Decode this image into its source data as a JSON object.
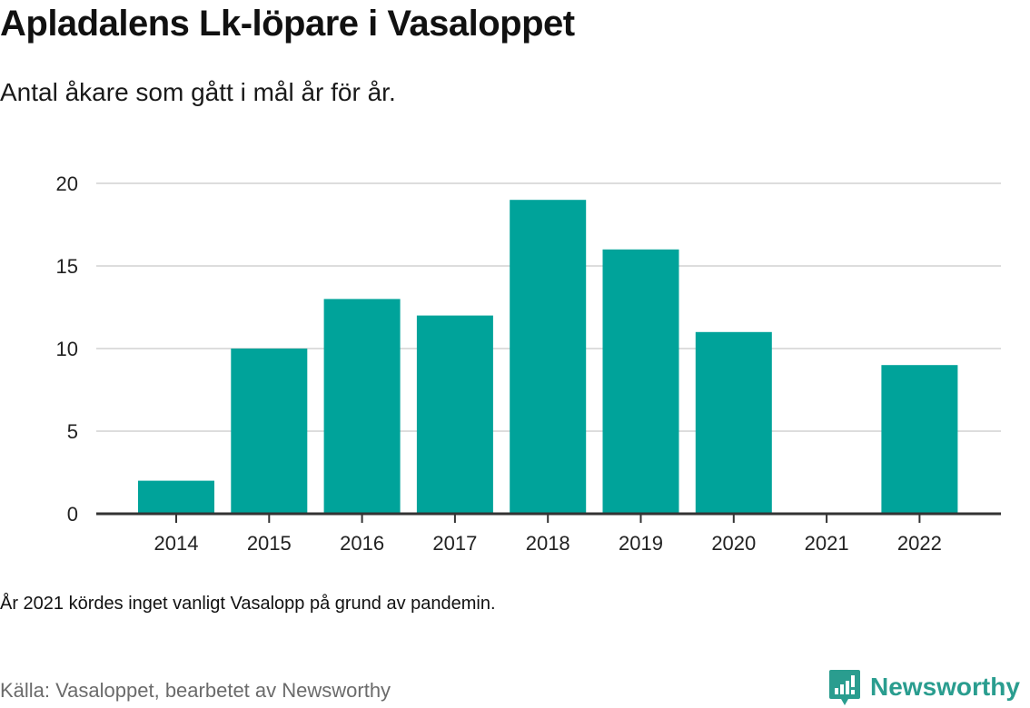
{
  "title": "Apladalens Lk-löpare i Vasaloppet",
  "subtitle": "Antal åkare som gått i mål år för år.",
  "note": "År 2021 kördes inget vanligt Vasalopp på grund av pandemin.",
  "source": "Källa: Vasaloppet, bearbetet av Newsworthy",
  "logo": {
    "text": "Newsworthy",
    "icon": "bar-chart-bubble-icon",
    "color": "#2a9d8f"
  },
  "colors": {
    "bar": "#00a39a",
    "grid": "#dddddd",
    "axis": "#333333"
  },
  "chart_data": {
    "type": "bar",
    "title": "Apladalens Lk-löpare i Vasaloppet",
    "subtitle": "Antal åkare som gått i mål år för år.",
    "xlabel": "",
    "ylabel": "",
    "categories": [
      "2014",
      "2015",
      "2016",
      "2017",
      "2018",
      "2019",
      "2020",
      "2021",
      "2022"
    ],
    "values": [
      2,
      10,
      13,
      12,
      19,
      16,
      11,
      0,
      9
    ],
    "ylim": [
      0,
      20
    ],
    "yticks": [
      "0",
      "5",
      "10",
      "15",
      "20"
    ],
    "grid": true,
    "legend": "none"
  }
}
